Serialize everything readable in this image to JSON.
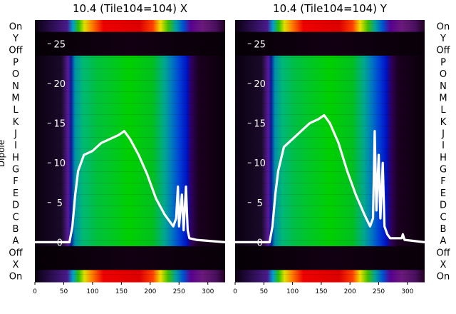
{
  "chart_data": [
    {
      "type": "heatmap",
      "title": "10.4 (Tile104=104) X",
      "ylabel": "Dipole",
      "x_ticks": [
        0,
        50,
        100,
        150,
        200,
        250,
        300
      ],
      "xlim": [
        0,
        330
      ],
      "row_labels": [
        "On",
        "Y",
        "Off",
        "P",
        "O",
        "N",
        "M",
        "L",
        "K",
        "J",
        "I",
        "H",
        "G",
        "F",
        "E",
        "D",
        "C",
        "B",
        "A",
        "Off",
        "X",
        "On"
      ],
      "rows_hot": [
        "On",
        "On"
      ],
      "rows_off": [
        "Y",
        "Off",
        "Off",
        "X"
      ],
      "colormap": "nipy_spectral",
      "overlay": {
        "name": "spectrum",
        "color": "#ffffff",
        "y_ticks": [
          0,
          5,
          10,
          15,
          20,
          25
        ],
        "ylim": [
          -5,
          28
        ],
        "points": [
          [
            0,
            0
          ],
          [
            60,
            0
          ],
          [
            65,
            2
          ],
          [
            70,
            6
          ],
          [
            75,
            9
          ],
          [
            85,
            11
          ],
          [
            100,
            11.5
          ],
          [
            115,
            12.5
          ],
          [
            130,
            13
          ],
          [
            145,
            13.5
          ],
          [
            155,
            14
          ],
          [
            165,
            13
          ],
          [
            180,
            11
          ],
          [
            195,
            8.5
          ],
          [
            210,
            5.5
          ],
          [
            225,
            3.5
          ],
          [
            240,
            2
          ],
          [
            245,
            3
          ],
          [
            248,
            7
          ],
          [
            250,
            2
          ],
          [
            255,
            6
          ],
          [
            258,
            1.5
          ],
          [
            262,
            7
          ],
          [
            265,
            1.5
          ],
          [
            268,
            0.5
          ],
          [
            280,
            0.3
          ],
          [
            330,
            0
          ]
        ]
      }
    },
    {
      "type": "heatmap",
      "title": "10.4 (Tile104=104) Y",
      "x_ticks": [
        0,
        50,
        100,
        150,
        200,
        250,
        300
      ],
      "xlim": [
        0,
        330
      ],
      "row_labels": [
        "On",
        "Y",
        "Off",
        "P",
        "O",
        "N",
        "M",
        "L",
        "K",
        "J",
        "I",
        "H",
        "G",
        "F",
        "E",
        "D",
        "C",
        "B",
        "A",
        "Off",
        "X",
        "On"
      ],
      "rows_hot": [
        "On",
        "On"
      ],
      "rows_off": [
        "Y",
        "Off",
        "Off",
        "X"
      ],
      "colormap": "nipy_spectral",
      "overlay": {
        "name": "spectrum",
        "color": "#ffffff",
        "y_ticks": [
          0,
          5,
          10,
          15,
          20,
          25
        ],
        "ylim": [
          -5,
          28
        ],
        "points": [
          [
            0,
            0
          ],
          [
            60,
            0
          ],
          [
            65,
            2
          ],
          [
            70,
            6
          ],
          [
            75,
            9
          ],
          [
            85,
            12
          ],
          [
            100,
            13
          ],
          [
            115,
            14
          ],
          [
            130,
            15
          ],
          [
            145,
            15.5
          ],
          [
            155,
            16
          ],
          [
            165,
            15
          ],
          [
            180,
            12.5
          ],
          [
            195,
            9
          ],
          [
            210,
            6
          ],
          [
            225,
            3.5
          ],
          [
            235,
            2
          ],
          [
            240,
            3
          ],
          [
            243,
            14
          ],
          [
            246,
            4
          ],
          [
            250,
            11
          ],
          [
            253,
            3
          ],
          [
            257,
            10
          ],
          [
            260,
            2
          ],
          [
            265,
            1
          ],
          [
            270,
            0.5
          ],
          [
            290,
            0.5
          ],
          [
            292,
            1
          ],
          [
            295,
            0.3
          ],
          [
            330,
            0
          ]
        ]
      }
    }
  ]
}
